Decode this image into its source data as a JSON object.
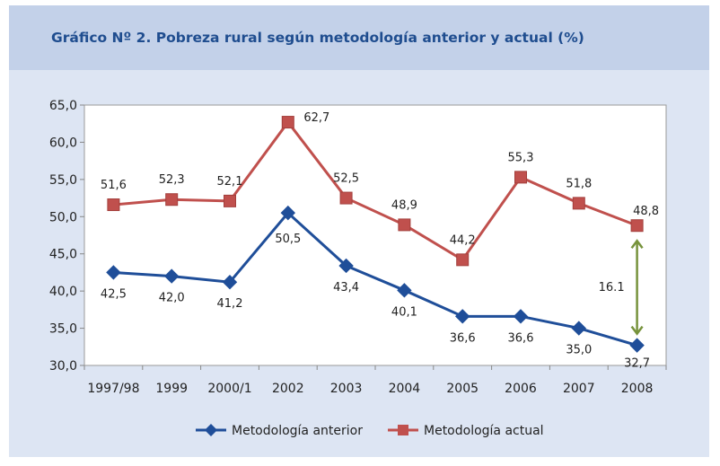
{
  "chart_data": {
    "type": "line",
    "title": "Gráfico Nº 2. Pobreza rural según metodología anterior y actual (%)",
    "xlabel": "",
    "ylabel": "",
    "categories": [
      "1997/98",
      "1999",
      "2000/1",
      "2002",
      "2003",
      "2004",
      "2005",
      "2006",
      "2007",
      "2008"
    ],
    "ylim": [
      30,
      65
    ],
    "yticks": [
      "30,0",
      "35,0",
      "40,0",
      "45,0",
      "50,0",
      "55,0",
      "60,0",
      "65,0"
    ],
    "grid": false,
    "legend_position": "bottom",
    "series": [
      {
        "name": "Metodología anterior",
        "color": "#1f4e99",
        "marker": "diamond",
        "values": [
          42.5,
          42.0,
          41.2,
          50.5,
          43.4,
          40.1,
          36.6,
          36.6,
          35.0,
          32.7
        ],
        "labels": [
          "42,5",
          "42,0",
          "41,2",
          "50,5",
          "43,4",
          "40,1",
          "36,6",
          "36,6",
          "35,0",
          "32,7"
        ]
      },
      {
        "name": "Metodología actual",
        "color": "#c0504d",
        "marker": "square",
        "values": [
          51.6,
          52.3,
          52.1,
          62.7,
          52.5,
          48.9,
          44.2,
          55.3,
          51.8,
          48.8
        ],
        "labels": [
          "51,6",
          "52,3",
          "52,1",
          "62,7",
          "52,5",
          "48,9",
          "44,2",
          "55,3",
          "51,8",
          "48,8"
        ]
      }
    ],
    "annotations": [
      {
        "text": "16.1",
        "category": "2008",
        "from": 32.7,
        "to": 48.8,
        "color": "#77933c"
      }
    ]
  }
}
